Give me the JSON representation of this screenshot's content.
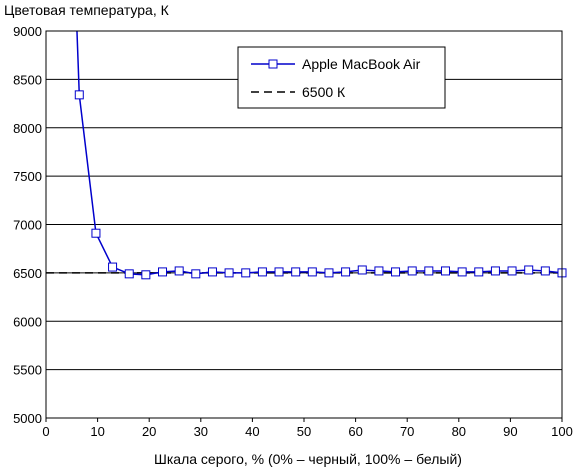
{
  "chart_data": {
    "type": "line",
    "ylabel": "Цветовая температура, К",
    "xlabel": "Шкала серого, % (0% – черный, 100% – белый)",
    "xlim": [
      0,
      100
    ],
    "ylim": [
      5000,
      9000
    ],
    "xticks": [
      "0",
      "10",
      "20",
      "30",
      "40",
      "50",
      "60",
      "70",
      "80",
      "90",
      "100"
    ],
    "yticks": [
      "5000",
      "5500",
      "6000",
      "6500",
      "7000",
      "7500",
      "8000",
      "8500",
      "9000"
    ],
    "grid": "horizontal",
    "legend_position": "top-right",
    "series": [
      {
        "name": "Apple MacBook Air",
        "color": "#0000cc",
        "marker": "square",
        "x": [
          6.0,
          6.45,
          9.68,
          12.9,
          16.13,
          19.35,
          22.58,
          25.81,
          29.03,
          32.26,
          35.48,
          38.71,
          41.94,
          45.16,
          48.39,
          51.61,
          54.84,
          58.06,
          61.29,
          64.52,
          67.74,
          70.97,
          74.19,
          77.42,
          80.65,
          83.87,
          87.1,
          90.32,
          93.55,
          96.77,
          100
        ],
        "y": [
          9000,
          8340,
          6910,
          6560,
          6490,
          6480,
          6510,
          6520,
          6490,
          6510,
          6500,
          6500,
          6510,
          6510,
          6510,
          6510,
          6500,
          6510,
          6530,
          6520,
          6510,
          6520,
          6520,
          6520,
          6510,
          6510,
          6520,
          6520,
          6530,
          6520,
          6500
        ],
        "markers_from_index": 1
      },
      {
        "name": "6500 К",
        "color": "#000000",
        "dash": "dashed",
        "x": [
          0,
          100
        ],
        "y": [
          6500,
          6500
        ]
      }
    ]
  }
}
